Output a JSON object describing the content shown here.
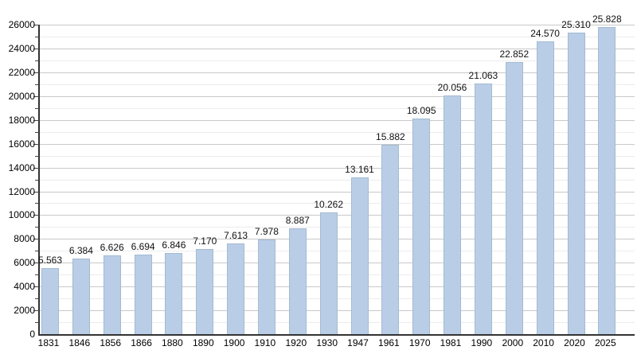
{
  "chart_data": {
    "type": "bar",
    "title": "",
    "xlabel": "",
    "ylabel": "",
    "categories": [
      "1831",
      "1846",
      "1856",
      "1866",
      "1880",
      "1890",
      "1900",
      "1910",
      "1920",
      "1930",
      "1947",
      "1961",
      "1970",
      "1981",
      "1990",
      "2000",
      "2010",
      "2020",
      "2025"
    ],
    "values": [
      5563,
      6384,
      6626,
      6694,
      6846,
      7170,
      7613,
      7978,
      8887,
      10262,
      13161,
      15882,
      18095,
      20056,
      21063,
      22852,
      24570,
      25310,
      25828
    ],
    "value_labels": [
      "5.563",
      "6.384",
      "6.626",
      "6.694",
      "6.846",
      "7.170",
      "7.613",
      "7.978",
      "8.887",
      "10.262",
      "13.161",
      "15.882",
      "18.095",
      "20.056",
      "21.063",
      "22.852",
      "24.570",
      "25.310",
      "25.828"
    ],
    "ylim": [
      0,
      26000
    ],
    "y_major_step": 2000,
    "y_minor_step": 1000,
    "y_tick_labels": [
      "0",
      "2000",
      "4000",
      "6000",
      "8000",
      "10000",
      "12000",
      "14000",
      "16000",
      "18000",
      "20000",
      "22000",
      "24000",
      "26000"
    ],
    "grid": "on",
    "legend": "none",
    "colors": {
      "bar_fill": "#b9cee6",
      "major_grid": "#c9c9c9",
      "minor_grid": "#ececec",
      "axis": "#333333",
      "text": "#000000"
    }
  }
}
